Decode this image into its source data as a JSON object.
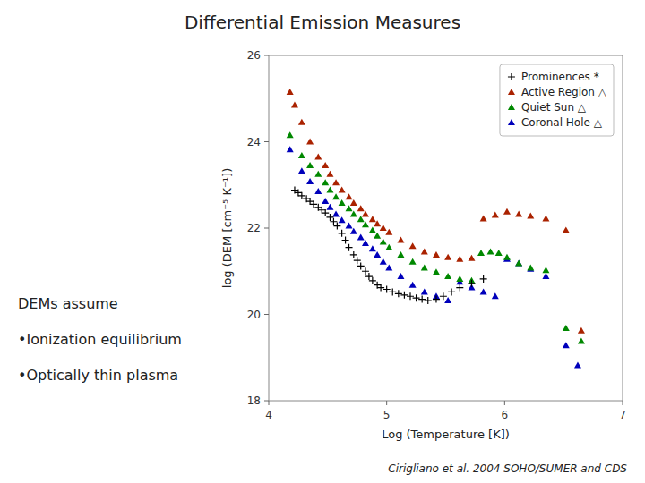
{
  "chart_data": {
    "type": "scatter",
    "title": "Differential Emission Measures",
    "x_label": "Log (Temperature [K])",
    "y_label": "log (DEM [cm⁻⁵ K⁻¹])",
    "annotations": [
      "DEMs assume",
      "•Ionization equilibrium",
      "•Optically thin plasma",
      "Cirigliano et al. 2004 SOHO/SUMER and CDS"
    ],
    "xlim": [
      4,
      7
    ],
    "ylim": [
      18,
      26
    ],
    "xticks": [
      4,
      5,
      6,
      7
    ],
    "yticks": [
      18,
      20,
      22,
      24,
      26
    ],
    "legend": "upper right",
    "series": [
      {
        "name": "Prominences *",
        "color": "#000000",
        "marker": "plus",
        "x": [
          4.22,
          4.25,
          4.28,
          4.32,
          4.35,
          4.38,
          4.42,
          4.45,
          4.48,
          4.52,
          4.55,
          4.58,
          4.62,
          4.65,
          4.68,
          4.72,
          4.75,
          4.78,
          4.82,
          4.85,
          4.88,
          4.92,
          4.95,
          5.0,
          5.05,
          5.1,
          5.15,
          5.2,
          5.25,
          5.3,
          5.35,
          5.42,
          5.48,
          5.55,
          5.62,
          5.72,
          5.82
        ],
        "values": [
          22.88,
          22.82,
          22.75,
          22.68,
          22.62,
          22.55,
          22.48,
          22.42,
          22.35,
          22.25,
          22.15,
          22.05,
          21.88,
          21.72,
          21.55,
          21.38,
          21.25,
          21.12,
          21.0,
          20.88,
          20.78,
          20.68,
          20.62,
          20.58,
          20.52,
          20.48,
          20.45,
          20.42,
          20.38,
          20.35,
          20.32,
          20.35,
          20.42,
          20.52,
          20.62,
          20.72,
          20.82
        ]
      },
      {
        "name": "Active Region △",
        "color": "#aa2200",
        "marker": "triangle",
        "x": [
          4.18,
          4.22,
          4.28,
          4.35,
          4.42,
          4.48,
          4.52,
          4.57,
          4.62,
          4.68,
          4.72,
          4.78,
          4.82,
          4.88,
          4.92,
          4.97,
          5.02,
          5.12,
          5.22,
          5.32,
          5.42,
          5.52,
          5.62,
          5.72,
          5.82,
          5.92,
          6.02,
          6.12,
          6.22,
          6.35,
          6.52,
          6.65
        ],
        "values": [
          25.15,
          24.85,
          24.45,
          24.0,
          23.65,
          23.45,
          23.25,
          23.05,
          22.88,
          22.72,
          22.58,
          22.45,
          22.32,
          22.2,
          22.1,
          22.0,
          21.9,
          21.72,
          21.58,
          21.45,
          21.38,
          21.32,
          21.28,
          21.3,
          22.22,
          22.3,
          22.38,
          22.32,
          22.28,
          22.22,
          21.95,
          19.62
        ]
      },
      {
        "name": "Quiet Sun △",
        "color": "#008800",
        "marker": "triangle",
        "x": [
          4.18,
          4.28,
          4.35,
          4.42,
          4.48,
          4.52,
          4.57,
          4.62,
          4.68,
          4.72,
          4.78,
          4.82,
          4.88,
          4.92,
          4.97,
          5.02,
          5.12,
          5.22,
          5.32,
          5.42,
          5.52,
          5.62,
          5.72,
          5.8,
          5.88,
          5.95,
          6.02,
          6.12,
          6.22,
          6.35,
          6.52,
          6.65
        ],
        "values": [
          24.15,
          23.68,
          23.45,
          23.25,
          23.05,
          22.88,
          22.72,
          22.58,
          22.45,
          22.32,
          22.2,
          22.08,
          21.95,
          21.82,
          21.68,
          21.55,
          21.38,
          21.22,
          21.08,
          20.98,
          20.88,
          20.82,
          20.78,
          21.42,
          21.45,
          21.42,
          21.32,
          21.18,
          21.08,
          21.02,
          19.68,
          19.38
        ]
      },
      {
        "name": "Coronal Hole △",
        "color": "#0000bb",
        "marker": "triangle",
        "x": [
          4.18,
          4.28,
          4.35,
          4.42,
          4.48,
          4.52,
          4.57,
          4.62,
          4.68,
          4.72,
          4.78,
          4.82,
          4.88,
          4.92,
          4.97,
          5.02,
          5.12,
          5.22,
          5.32,
          5.42,
          5.52,
          5.62,
          5.72,
          5.82,
          5.92,
          6.02,
          6.12,
          6.22,
          6.35,
          6.52,
          6.62
        ],
        "values": [
          23.82,
          23.32,
          23.08,
          22.85,
          22.62,
          22.48,
          22.32,
          22.18,
          22.05,
          21.92,
          21.78,
          21.65,
          21.52,
          21.38,
          21.22,
          21.08,
          20.88,
          20.68,
          20.52,
          20.42,
          20.32,
          20.75,
          20.62,
          20.52,
          20.42,
          21.28,
          21.18,
          21.05,
          20.88,
          19.28,
          18.82
        ]
      }
    ]
  }
}
